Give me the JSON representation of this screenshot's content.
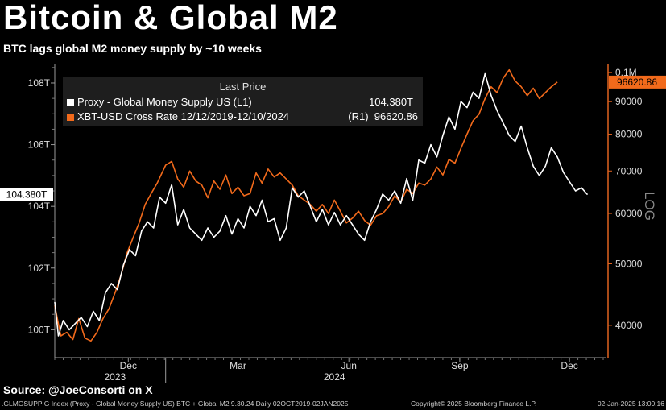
{
  "header": {
    "title": "Bitcoin & Global M2",
    "subtitle": "BTC lags global M2 money supply by ~10 weeks"
  },
  "legend": {
    "heading": "Last Price",
    "items": [
      {
        "name": "Proxy - Global Money Supply US  (L1)",
        "value": "104.380T",
        "axis": "",
        "color": "#ffffff"
      },
      {
        "name": "XBT-USD Cross Rate 12/12/2019-12/10/2024",
        "value": "96620.86",
        "axis": "(R1)",
        "color": "#f26a1b"
      }
    ]
  },
  "axis_badges": {
    "left_last": "104.380T",
    "right_last": "96620.86",
    "right_scale": "LOG"
  },
  "source": "Source: @JoeConsorti on X",
  "footer": {
    "left": ".GLMOSUPP G Index (Proxy - Global Money Supply US) BTC + Global M2 9.30.24  Daily 02OCT2019-02JAN2025",
    "center": "Copyright© 2025 Bloomberg Finance L.P.",
    "right": "02-Jan-2025 13:00:16"
  },
  "chart_data": {
    "type": "line",
    "x_range": [
      "2023-10-01",
      "2024-12-31"
    ],
    "x_ticks": [
      {
        "date": "2023-12-01",
        "label": "Dec"
      },
      {
        "date": "2024-03-01",
        "label": "Mar"
      },
      {
        "date": "2024-06-01",
        "label": "Jun"
      },
      {
        "date": "2024-09-01",
        "label": "Sep"
      },
      {
        "date": "2024-12-01",
        "label": "Dec"
      }
    ],
    "year_labels": [
      {
        "date": "2023-11-20",
        "label": "2023"
      },
      {
        "date": "2024-05-20",
        "label": "2024"
      }
    ],
    "year_separators": [
      "2024-01-01"
    ],
    "left_axis": {
      "ylim": [
        99.2,
        108.6
      ],
      "unit": "T",
      "ticks": [
        {
          "value": 100,
          "label": "100T"
        },
        {
          "value": 102,
          "label": "102T"
        },
        {
          "value": 104,
          "label": "104T"
        },
        {
          "value": 106,
          "label": "106T"
        },
        {
          "value": 108,
          "label": "108T"
        }
      ]
    },
    "right_axis": {
      "scale": "log",
      "ylim": [
        36000,
        103000
      ],
      "ticks": [
        {
          "value": 40000,
          "label": "40000"
        },
        {
          "value": 50000,
          "label": "50000"
        },
        {
          "value": 60000,
          "label": "60000"
        },
        {
          "value": 70000,
          "label": "70000"
        },
        {
          "value": 80000,
          "label": "80000"
        },
        {
          "value": 90000,
          "label": "90000"
        },
        {
          "value": 100000,
          "label": "0.1M"
        }
      ]
    },
    "grid": false,
    "series": [
      {
        "name": "Proxy - Global Money Supply US  (L1)",
        "axis": "left",
        "color": "#ffffff",
        "points": [
          [
            "2023-10-01",
            100.9
          ],
          [
            "2023-10-04",
            99.8
          ],
          [
            "2023-10-08",
            100.3
          ],
          [
            "2023-10-13",
            100.0
          ],
          [
            "2023-10-18",
            100.2
          ],
          [
            "2023-10-23",
            100.4
          ],
          [
            "2023-10-28",
            100.1
          ],
          [
            "2023-11-02",
            100.6
          ],
          [
            "2023-11-07",
            100.3
          ],
          [
            "2023-11-12",
            101.2
          ],
          [
            "2023-11-17",
            101.5
          ],
          [
            "2023-11-22",
            101.3
          ],
          [
            "2023-11-27",
            102.1
          ],
          [
            "2023-12-02",
            102.6
          ],
          [
            "2023-12-07",
            102.4
          ],
          [
            "2023-12-12",
            103.2
          ],
          [
            "2023-12-17",
            103.5
          ],
          [
            "2023-12-22",
            103.3
          ],
          [
            "2023-12-27",
            104.3
          ],
          [
            "2024-01-01",
            104.1
          ],
          [
            "2024-01-06",
            104.7
          ],
          [
            "2024-01-11",
            103.4
          ],
          [
            "2024-01-16",
            103.9
          ],
          [
            "2024-01-21",
            103.3
          ],
          [
            "2024-01-26",
            103.1
          ],
          [
            "2024-01-31",
            102.9
          ],
          [
            "2024-02-05",
            103.3
          ],
          [
            "2024-02-10",
            103.0
          ],
          [
            "2024-02-15",
            103.2
          ],
          [
            "2024-02-20",
            103.7
          ],
          [
            "2024-02-25",
            103.1
          ],
          [
            "2024-03-01",
            103.6
          ],
          [
            "2024-03-06",
            103.3
          ],
          [
            "2024-03-11",
            104.0
          ],
          [
            "2024-03-16",
            103.7
          ],
          [
            "2024-03-21",
            104.2
          ],
          [
            "2024-03-26",
            103.5
          ],
          [
            "2024-03-31",
            103.6
          ],
          [
            "2024-04-05",
            102.9
          ],
          [
            "2024-04-10",
            103.3
          ],
          [
            "2024-04-15",
            104.6
          ],
          [
            "2024-04-20",
            104.3
          ],
          [
            "2024-04-25",
            104.5
          ],
          [
            "2024-04-30",
            104.0
          ],
          [
            "2024-05-05",
            103.5
          ],
          [
            "2024-05-10",
            103.9
          ],
          [
            "2024-05-15",
            103.4
          ],
          [
            "2024-05-20",
            103.8
          ],
          [
            "2024-05-25",
            103.4
          ],
          [
            "2024-05-30",
            103.7
          ],
          [
            "2024-06-04",
            103.4
          ],
          [
            "2024-06-09",
            103.1
          ],
          [
            "2024-06-14",
            102.9
          ],
          [
            "2024-06-19",
            103.5
          ],
          [
            "2024-06-24",
            103.9
          ],
          [
            "2024-06-29",
            104.4
          ],
          [
            "2024-07-04",
            104.2
          ],
          [
            "2024-07-09",
            104.5
          ],
          [
            "2024-07-14",
            104.1
          ],
          [
            "2024-07-19",
            104.9
          ],
          [
            "2024-07-24",
            104.2
          ],
          [
            "2024-07-29",
            105.5
          ],
          [
            "2024-08-03",
            105.4
          ],
          [
            "2024-08-08",
            106.0
          ],
          [
            "2024-08-13",
            105.6
          ],
          [
            "2024-08-18",
            106.3
          ],
          [
            "2024-08-23",
            106.9
          ],
          [
            "2024-08-28",
            106.5
          ],
          [
            "2024-09-02",
            107.4
          ],
          [
            "2024-09-07",
            107.2
          ],
          [
            "2024-09-12",
            107.7
          ],
          [
            "2024-09-17",
            107.5
          ],
          [
            "2024-09-22",
            108.3
          ],
          [
            "2024-09-27",
            107.6
          ],
          [
            "2024-10-02",
            107.1
          ],
          [
            "2024-10-07",
            106.7
          ],
          [
            "2024-10-12",
            106.3
          ],
          [
            "2024-10-17",
            106.1
          ],
          [
            "2024-10-22",
            106.6
          ],
          [
            "2024-10-27",
            105.9
          ],
          [
            "2024-11-01",
            105.3
          ],
          [
            "2024-11-06",
            105.0
          ],
          [
            "2024-11-11",
            105.3
          ],
          [
            "2024-11-16",
            105.9
          ],
          [
            "2024-11-21",
            105.6
          ],
          [
            "2024-11-26",
            105.1
          ],
          [
            "2024-12-01",
            104.8
          ],
          [
            "2024-12-06",
            104.5
          ],
          [
            "2024-12-11",
            104.6
          ],
          [
            "2024-12-16",
            104.38
          ]
        ]
      },
      {
        "name": "XBT-USD Cross Rate 12/12/2019-12/10/2024",
        "axis": "right",
        "color": "#f26a1b",
        "points": [
          [
            "2023-10-01",
            43000
          ],
          [
            "2023-10-06",
            38500
          ],
          [
            "2023-10-11",
            39000
          ],
          [
            "2023-10-16",
            38000
          ],
          [
            "2023-10-21",
            41000
          ],
          [
            "2023-10-26",
            38200
          ],
          [
            "2023-10-31",
            37800
          ],
          [
            "2023-11-05",
            39000
          ],
          [
            "2023-11-10",
            41000
          ],
          [
            "2023-11-15",
            42500
          ],
          [
            "2023-11-20",
            45000
          ],
          [
            "2023-11-25",
            48000
          ],
          [
            "2023-11-30",
            52000
          ],
          [
            "2023-12-05",
            55000
          ],
          [
            "2023-12-10",
            58000
          ],
          [
            "2023-12-15",
            62000
          ],
          [
            "2023-12-20",
            64500
          ],
          [
            "2023-12-25",
            67000
          ],
          [
            "2024-01-01",
            71500
          ],
          [
            "2024-01-06",
            72500
          ],
          [
            "2024-01-11",
            68000
          ],
          [
            "2024-01-16",
            66000
          ],
          [
            "2024-01-21",
            70000
          ],
          [
            "2024-01-26",
            67500
          ],
          [
            "2024-01-31",
            66500
          ],
          [
            "2024-02-05",
            63500
          ],
          [
            "2024-02-10",
            67500
          ],
          [
            "2024-02-15",
            65500
          ],
          [
            "2024-02-20",
            69000
          ],
          [
            "2024-02-25",
            64500
          ],
          [
            "2024-03-01",
            66000
          ],
          [
            "2024-03-06",
            64000
          ],
          [
            "2024-03-11",
            64500
          ],
          [
            "2024-03-16",
            69500
          ],
          [
            "2024-03-21",
            67000
          ],
          [
            "2024-03-26",
            70500
          ],
          [
            "2024-03-31",
            68500
          ],
          [
            "2024-04-05",
            69500
          ],
          [
            "2024-04-10",
            68000
          ],
          [
            "2024-04-15",
            66500
          ],
          [
            "2024-04-20",
            64000
          ],
          [
            "2024-04-25",
            63000
          ],
          [
            "2024-04-30",
            62000
          ],
          [
            "2024-05-05",
            60500
          ],
          [
            "2024-05-10",
            62000
          ],
          [
            "2024-05-15",
            60000
          ],
          [
            "2024-05-20",
            63000
          ],
          [
            "2024-05-25",
            60500
          ],
          [
            "2024-05-30",
            58000
          ],
          [
            "2024-06-04",
            59000
          ],
          [
            "2024-06-09",
            60500
          ],
          [
            "2024-06-14",
            58500
          ],
          [
            "2024-06-19",
            57500
          ],
          [
            "2024-06-24",
            59500
          ],
          [
            "2024-06-29",
            60000
          ],
          [
            "2024-07-04",
            61500
          ],
          [
            "2024-07-09",
            64000
          ],
          [
            "2024-07-14",
            62500
          ],
          [
            "2024-07-19",
            65500
          ],
          [
            "2024-07-24",
            64500
          ],
          [
            "2024-07-29",
            67000
          ],
          [
            "2024-08-03",
            66500
          ],
          [
            "2024-08-08",
            68000
          ],
          [
            "2024-08-13",
            71000
          ],
          [
            "2024-08-18",
            69000
          ],
          [
            "2024-08-23",
            73000
          ],
          [
            "2024-08-28",
            72000
          ],
          [
            "2024-09-02",
            76000
          ],
          [
            "2024-09-07",
            80000
          ],
          [
            "2024-09-12",
            84000
          ],
          [
            "2024-09-17",
            86000
          ],
          [
            "2024-09-22",
            91000
          ],
          [
            "2024-09-27",
            95000
          ],
          [
            "2024-10-02",
            93000
          ],
          [
            "2024-10-07",
            98000
          ],
          [
            "2024-10-12",
            101000
          ],
          [
            "2024-10-17",
            97000
          ],
          [
            "2024-10-22",
            95000
          ],
          [
            "2024-10-27",
            92000
          ],
          [
            "2024-11-01",
            94500
          ],
          [
            "2024-11-06",
            91000
          ],
          [
            "2024-11-11",
            93000
          ],
          [
            "2024-11-16",
            95000
          ],
          [
            "2024-11-21",
            96620.86
          ]
        ]
      }
    ]
  }
}
